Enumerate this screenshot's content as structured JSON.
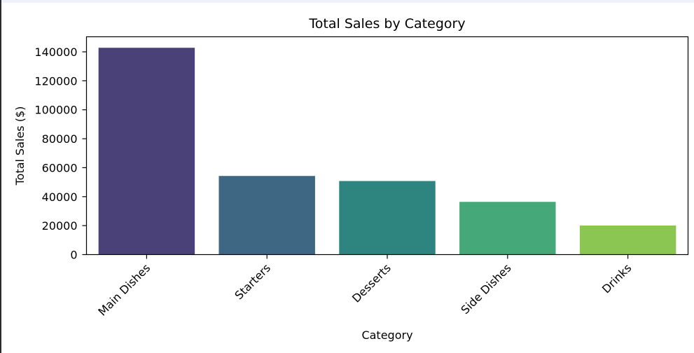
{
  "chart_data": {
    "type": "bar",
    "title": "Total Sales by Category",
    "xlabel": "Category",
    "ylabel": "Total Sales ($)",
    "categories": [
      "Main Dishes",
      "Starters",
      "Desserts",
      "Side Dishes",
      "Drinks"
    ],
    "values": [
      142800,
      54300,
      50800,
      36400,
      20100
    ],
    "colors": [
      "#4a4179",
      "#3e6783",
      "#2e8580",
      "#45a878",
      "#8bc653"
    ],
    "ylim": [
      0,
      150000
    ],
    "yticks": [
      0,
      20000,
      40000,
      60000,
      80000,
      100000,
      120000,
      140000
    ],
    "ytick_labels": [
      "0",
      "20000",
      "40000",
      "60000",
      "80000",
      "100000",
      "120000",
      "140000"
    ],
    "grid": false,
    "legend": "none"
  }
}
